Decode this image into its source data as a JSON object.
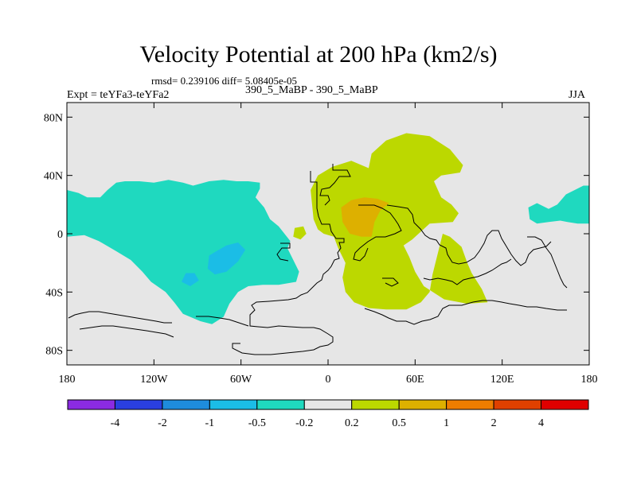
{
  "chart_data": {
    "type": "contour-map",
    "title": "Velocity Potential at 200 hPa (km2/s)",
    "stats_text": "rmsd= 0.239106 diff= 5.08405e-05",
    "left_label": "Expt = teYFa3-teYFa2",
    "center_label": "390_5_MaBP - 390_5_MaBP",
    "season": "JJA",
    "xlim": [
      -180,
      180
    ],
    "ylim": [
      -90,
      90
    ],
    "x_ticks": [
      {
        "value": -180,
        "label": "180"
      },
      {
        "value": -120,
        "label": "120W"
      },
      {
        "value": -60,
        "label": "60W"
      },
      {
        "value": 0,
        "label": "0"
      },
      {
        "value": 60,
        "label": "60E"
      },
      {
        "value": 120,
        "label": "120E"
      },
      {
        "value": 180,
        "label": "180"
      }
    ],
    "y_ticks": [
      {
        "value": 80,
        "label": "80N"
      },
      {
        "value": 40,
        "label": "40N"
      },
      {
        "value": 0,
        "label": "0"
      },
      {
        "value": -40,
        "label": "40S"
      },
      {
        "value": -80,
        "label": "80S"
      }
    ],
    "colorbar": {
      "colors": [
        "#8b2be2",
        "#2a3fe0",
        "#1e8cdc",
        "#1bbde6",
        "#1fd9bf",
        "#e6e6e6",
        "#bcd800",
        "#ddb000",
        "#ee7d00",
        "#e04000",
        "#e00000"
      ],
      "labels": [
        "-4",
        "-2",
        "-1",
        "-0.5",
        "-0.2",
        "0.2",
        "0.5",
        "1",
        "2",
        "4"
      ]
    },
    "regions": [
      {
        "name": "negative-pacific-atlantic-region",
        "level": "-0.5 to -0.2",
        "color": "#1fd9bf",
        "points": [
          [
            -180,
            -2
          ],
          [
            -180,
            30
          ],
          [
            -172,
            28
          ],
          [
            -166,
            25
          ],
          [
            -157,
            25
          ],
          [
            -152,
            30
          ],
          [
            -146,
            35
          ],
          [
            -140,
            36
          ],
          [
            -130,
            36
          ],
          [
            -120,
            35
          ],
          [
            -110,
            37
          ],
          [
            -100,
            35
          ],
          [
            -93,
            33
          ],
          [
            -82,
            36
          ],
          [
            -72,
            37
          ],
          [
            -63,
            36
          ],
          [
            -55,
            36
          ],
          [
            -47,
            35
          ],
          [
            -47,
            31
          ],
          [
            -50,
            25
          ],
          [
            -44,
            18
          ],
          [
            -40,
            10
          ],
          [
            -34,
            5
          ],
          [
            -26,
            -5
          ],
          [
            -28,
            -10
          ],
          [
            -24,
            -18
          ],
          [
            -20,
            -26
          ],
          [
            -22,
            -33
          ],
          [
            -34,
            -35
          ],
          [
            -45,
            -35
          ],
          [
            -55,
            -36
          ],
          [
            -62,
            -40
          ],
          [
            -68,
            -48
          ],
          [
            -72,
            -57
          ],
          [
            -80,
            -62
          ],
          [
            -88,
            -60
          ],
          [
            -100,
            -55
          ],
          [
            -106,
            -47
          ],
          [
            -112,
            -40
          ],
          [
            -122,
            -33
          ],
          [
            -128,
            -26
          ],
          [
            -136,
            -18
          ],
          [
            -146,
            -12
          ],
          [
            -158,
            -5
          ],
          [
            -168,
            -1
          ]
        ]
      },
      {
        "name": "negative-subregion-1",
        "level": "-1 to -0.5",
        "color": "#1bbde6",
        "points": [
          [
            -82,
            -15
          ],
          [
            -77,
            -12
          ],
          [
            -70,
            -8
          ],
          [
            -62,
            -6
          ],
          [
            -57,
            -11
          ],
          [
            -62,
            -19
          ],
          [
            -70,
            -26
          ],
          [
            -78,
            -28
          ],
          [
            -83,
            -24
          ]
        ]
      },
      {
        "name": "negative-subregion-2",
        "level": "-1 to -0.5",
        "color": "#1bbde6",
        "points": [
          [
            -98,
            -27
          ],
          [
            -92,
            -27
          ],
          [
            -89,
            -32
          ],
          [
            -95,
            -36
          ],
          [
            -101,
            -33
          ]
        ]
      },
      {
        "name": "negative-pacific-east-region",
        "level": "-0.5 to -0.2",
        "color": "#1fd9bf",
        "points": [
          [
            180,
            33
          ],
          [
            180,
            7
          ],
          [
            172,
            7
          ],
          [
            165,
            8
          ],
          [
            160,
            9
          ],
          [
            152,
            8
          ],
          [
            144,
            7
          ],
          [
            139,
            10
          ],
          [
            138,
            18
          ],
          [
            144,
            21
          ],
          [
            152,
            17
          ],
          [
            158,
            20
          ],
          [
            164,
            27
          ],
          [
            170,
            30
          ],
          [
            176,
            33
          ]
        ]
      },
      {
        "name": "positive-africa-indian-region",
        "level": "0.2 to 0.5",
        "color": "#bcd800",
        "points": [
          [
            -12,
            30
          ],
          [
            -7,
            40
          ],
          [
            3,
            46
          ],
          [
            16,
            50
          ],
          [
            28,
            45
          ],
          [
            30,
            55
          ],
          [
            40,
            64
          ],
          [
            54,
            69
          ],
          [
            70,
            67
          ],
          [
            84,
            58
          ],
          [
            93,
            47
          ],
          [
            91,
            42
          ],
          [
            78,
            40
          ],
          [
            73,
            36
          ],
          [
            78,
            25
          ],
          [
            85,
            20
          ],
          [
            90,
            14
          ],
          [
            86,
            8
          ],
          [
            70,
            7
          ],
          [
            58,
            -4
          ],
          [
            52,
            -8
          ],
          [
            56,
            -16
          ],
          [
            60,
            -26
          ],
          [
            66,
            -36
          ],
          [
            80,
            -45
          ],
          [
            96,
            -48
          ],
          [
            110,
            -47
          ],
          [
            106,
            -38
          ],
          [
            99,
            -27
          ],
          [
            96,
            -20
          ],
          [
            92,
            -9
          ],
          [
            84,
            -2
          ],
          [
            79,
            0
          ],
          [
            76,
            -12
          ],
          [
            72,
            -28
          ],
          [
            70,
            -40
          ],
          [
            64,
            -47
          ],
          [
            54,
            -52
          ],
          [
            40,
            -52
          ],
          [
            28,
            -51
          ],
          [
            18,
            -47
          ],
          [
            12,
            -40
          ],
          [
            10,
            -30
          ],
          [
            12,
            -20
          ],
          [
            7,
            -10
          ],
          [
            4,
            -2
          ],
          [
            -3,
            0
          ],
          [
            -7,
            3
          ],
          [
            -10,
            10
          ]
        ]
      },
      {
        "name": "positive-atlantic-small-region",
        "level": "0.2 to 0.5",
        "color": "#bcd800",
        "points": [
          [
            -23,
            4
          ],
          [
            -17,
            5
          ],
          [
            -15,
            0
          ],
          [
            -19,
            -4
          ],
          [
            -24,
            -2
          ]
        ]
      },
      {
        "name": "positive-africa-core-region",
        "level": "0.5 to 1",
        "color": "#ddb000",
        "points": [
          [
            9,
            18
          ],
          [
            16,
            23
          ],
          [
            25,
            25
          ],
          [
            34,
            24
          ],
          [
            42,
            21
          ],
          [
            36,
            16
          ],
          [
            32,
            8
          ],
          [
            30,
            -2
          ],
          [
            23,
            -2
          ],
          [
            15,
            0
          ],
          [
            10,
            8
          ]
        ]
      }
    ]
  }
}
